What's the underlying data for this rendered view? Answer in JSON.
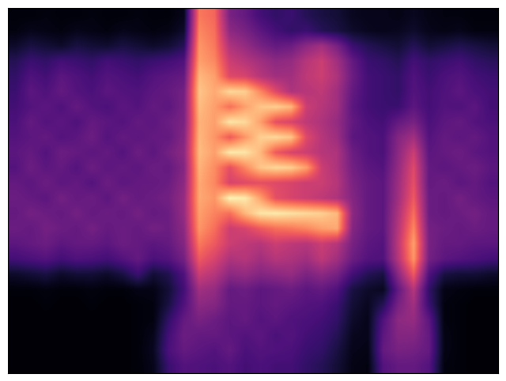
{
  "chart_data": {
    "type": "heatmap",
    "color": "magma",
    "tick_labels": false,
    "value_range": [
      0,
      1
    ],
    "cells": [
      [
        0.02,
        0.02,
        0.03,
        0.02,
        0.02,
        0.03,
        0.02,
        0.02,
        0.03,
        0.02,
        0.02,
        0.05,
        0.72,
        0.68,
        0.35,
        0.3,
        0.22,
        0.18,
        0.2,
        0.15,
        0.12,
        0.1,
        0.06,
        0.05,
        0.05,
        0.04,
        0.06,
        0.04,
        0.03,
        0.03,
        0.02,
        0.02
      ],
      [
        0.03,
        0.05,
        0.04,
        0.03,
        0.05,
        0.04,
        0.03,
        0.05,
        0.04,
        0.03,
        0.04,
        0.08,
        0.75,
        0.7,
        0.4,
        0.35,
        0.28,
        0.22,
        0.18,
        0.2,
        0.15,
        0.12,
        0.08,
        0.06,
        0.05,
        0.06,
        0.08,
        0.05,
        0.04,
        0.05,
        0.03,
        0.03
      ],
      [
        0.08,
        0.12,
        0.1,
        0.08,
        0.12,
        0.1,
        0.09,
        0.12,
        0.1,
        0.08,
        0.1,
        0.15,
        0.78,
        0.72,
        0.48,
        0.42,
        0.35,
        0.3,
        0.32,
        0.4,
        0.45,
        0.35,
        0.2,
        0.15,
        0.12,
        0.1,
        0.15,
        0.1,
        0.12,
        0.14,
        0.12,
        0.1
      ],
      [
        0.15,
        0.2,
        0.18,
        0.22,
        0.2,
        0.18,
        0.22,
        0.2,
        0.18,
        0.2,
        0.22,
        0.25,
        0.8,
        0.75,
        0.55,
        0.5,
        0.45,
        0.4,
        0.42,
        0.5,
        0.55,
        0.45,
        0.3,
        0.2,
        0.18,
        0.15,
        0.22,
        0.18,
        0.2,
        0.22,
        0.18,
        0.16
      ],
      [
        0.18,
        0.25,
        0.22,
        0.28,
        0.25,
        0.22,
        0.26,
        0.24,
        0.22,
        0.26,
        0.28,
        0.3,
        0.85,
        0.8,
        0.6,
        0.58,
        0.5,
        0.45,
        0.45,
        0.52,
        0.55,
        0.48,
        0.32,
        0.22,
        0.2,
        0.18,
        0.25,
        0.2,
        0.24,
        0.26,
        0.22,
        0.2
      ],
      [
        0.2,
        0.28,
        0.25,
        0.3,
        0.26,
        0.24,
        0.28,
        0.26,
        0.25,
        0.28,
        0.3,
        0.34,
        0.88,
        0.82,
        0.92,
        0.9,
        0.75,
        0.6,
        0.48,
        0.5,
        0.52,
        0.45,
        0.3,
        0.22,
        0.2,
        0.18,
        0.26,
        0.22,
        0.25,
        0.28,
        0.24,
        0.22
      ],
      [
        0.22,
        0.26,
        0.28,
        0.25,
        0.3,
        0.26,
        0.24,
        0.28,
        0.26,
        0.3,
        0.28,
        0.35,
        0.86,
        0.8,
        0.7,
        0.8,
        0.88,
        0.9,
        0.85,
        0.55,
        0.5,
        0.45,
        0.28,
        0.22,
        0.2,
        0.2,
        0.28,
        0.22,
        0.26,
        0.25,
        0.28,
        0.22
      ],
      [
        0.24,
        0.3,
        0.26,
        0.28,
        0.25,
        0.3,
        0.28,
        0.26,
        0.3,
        0.28,
        0.32,
        0.36,
        0.84,
        0.8,
        0.95,
        0.92,
        0.8,
        0.62,
        0.58,
        0.52,
        0.48,
        0.42,
        0.3,
        0.24,
        0.22,
        0.3,
        0.35,
        0.24,
        0.28,
        0.3,
        0.26,
        0.24
      ],
      [
        0.26,
        0.28,
        0.3,
        0.26,
        0.28,
        0.32,
        0.26,
        0.3,
        0.28,
        0.3,
        0.3,
        0.38,
        0.85,
        0.78,
        0.65,
        0.78,
        0.9,
        0.92,
        0.88,
        0.6,
        0.5,
        0.44,
        0.28,
        0.26,
        0.24,
        0.38,
        0.45,
        0.26,
        0.3,
        0.28,
        0.3,
        0.26
      ],
      [
        0.28,
        0.3,
        0.26,
        0.32,
        0.3,
        0.28,
        0.3,
        0.26,
        0.32,
        0.28,
        0.34,
        0.4,
        0.86,
        0.8,
        0.96,
        0.95,
        0.85,
        0.65,
        0.58,
        0.55,
        0.5,
        0.48,
        0.32,
        0.26,
        0.24,
        0.4,
        0.55,
        0.28,
        0.3,
        0.32,
        0.28,
        0.26
      ],
      [
        0.26,
        0.32,
        0.28,
        0.3,
        0.26,
        0.32,
        0.28,
        0.3,
        0.28,
        0.32,
        0.3,
        0.38,
        0.84,
        0.76,
        0.62,
        0.75,
        0.88,
        0.92,
        0.9,
        0.8,
        0.55,
        0.48,
        0.34,
        0.28,
        0.26,
        0.42,
        0.6,
        0.3,
        0.28,
        0.3,
        0.32,
        0.28
      ],
      [
        0.3,
        0.28,
        0.32,
        0.28,
        0.3,
        0.26,
        0.32,
        0.28,
        0.3,
        0.3,
        0.32,
        0.4,
        0.82,
        0.75,
        0.58,
        0.6,
        0.62,
        0.6,
        0.58,
        0.55,
        0.55,
        0.5,
        0.36,
        0.3,
        0.28,
        0.44,
        0.62,
        0.3,
        0.32,
        0.28,
        0.3,
        0.26
      ],
      [
        0.32,
        0.3,
        0.28,
        0.34,
        0.3,
        0.32,
        0.28,
        0.34,
        0.3,
        0.32,
        0.34,
        0.42,
        0.82,
        0.78,
        0.98,
        0.96,
        0.8,
        0.62,
        0.58,
        0.55,
        0.52,
        0.48,
        0.38,
        0.3,
        0.28,
        0.45,
        0.65,
        0.32,
        0.3,
        0.34,
        0.3,
        0.28
      ],
      [
        0.3,
        0.34,
        0.32,
        0.3,
        0.34,
        0.3,
        0.32,
        0.3,
        0.34,
        0.3,
        0.32,
        0.42,
        0.8,
        0.74,
        0.7,
        0.85,
        0.95,
        0.96,
        0.94,
        0.92,
        0.9,
        0.85,
        0.4,
        0.3,
        0.28,
        0.48,
        0.7,
        0.32,
        0.3,
        0.32,
        0.34,
        0.3
      ],
      [
        0.32,
        0.3,
        0.34,
        0.32,
        0.3,
        0.34,
        0.3,
        0.32,
        0.3,
        0.34,
        0.32,
        0.4,
        0.78,
        0.7,
        0.55,
        0.58,
        0.65,
        0.7,
        0.72,
        0.75,
        0.8,
        0.82,
        0.38,
        0.3,
        0.28,
        0.5,
        0.75,
        0.34,
        0.32,
        0.3,
        0.32,
        0.3
      ],
      [
        0.28,
        0.3,
        0.32,
        0.28,
        0.3,
        0.3,
        0.28,
        0.32,
        0.3,
        0.28,
        0.3,
        0.38,
        0.72,
        0.65,
        0.55,
        0.52,
        0.5,
        0.55,
        0.52,
        0.5,
        0.55,
        0.5,
        0.35,
        0.28,
        0.26,
        0.52,
        0.8,
        0.35,
        0.3,
        0.3,
        0.28,
        0.28
      ],
      [
        0.22,
        0.24,
        0.26,
        0.22,
        0.25,
        0.24,
        0.22,
        0.26,
        0.3,
        0.24,
        0.26,
        0.34,
        0.65,
        0.58,
        0.48,
        0.5,
        0.45,
        0.5,
        0.48,
        0.45,
        0.52,
        0.45,
        0.32,
        0.26,
        0.25,
        0.5,
        0.78,
        0.34,
        0.28,
        0.26,
        0.24,
        0.22
      ],
      [
        0.08,
        0.1,
        0.12,
        0.08,
        0.1,
        0.1,
        0.08,
        0.12,
        0.2,
        0.1,
        0.14,
        0.25,
        0.55,
        0.5,
        0.4,
        0.42,
        0.38,
        0.4,
        0.42,
        0.36,
        0.4,
        0.35,
        0.22,
        0.15,
        0.12,
        0.4,
        0.65,
        0.25,
        0.12,
        0.1,
        0.1,
        0.08
      ],
      [
        0.02,
        0.02,
        0.03,
        0.02,
        0.02,
        0.03,
        0.02,
        0.02,
        0.04,
        0.04,
        0.1,
        0.22,
        0.45,
        0.42,
        0.3,
        0.32,
        0.28,
        0.3,
        0.32,
        0.28,
        0.3,
        0.25,
        0.12,
        0.08,
        0.06,
        0.3,
        0.5,
        0.18,
        0.04,
        0.03,
        0.02,
        0.02
      ],
      [
        0.01,
        0.01,
        0.02,
        0.01,
        0.01,
        0.02,
        0.01,
        0.01,
        0.02,
        0.03,
        0.12,
        0.25,
        0.4,
        0.38,
        0.3,
        0.3,
        0.28,
        0.3,
        0.28,
        0.26,
        0.25,
        0.2,
        0.1,
        0.06,
        0.15,
        0.35,
        0.45,
        0.2,
        0.03,
        0.02,
        0.01,
        0.01
      ],
      [
        0.01,
        0.01,
        0.01,
        0.01,
        0.01,
        0.01,
        0.01,
        0.01,
        0.02,
        0.03,
        0.18,
        0.3,
        0.35,
        0.32,
        0.28,
        0.3,
        0.26,
        0.28,
        0.25,
        0.24,
        0.22,
        0.18,
        0.08,
        0.05,
        0.25,
        0.4,
        0.42,
        0.28,
        0.03,
        0.02,
        0.01,
        0.01
      ],
      [
        0.01,
        0.01,
        0.01,
        0.01,
        0.01,
        0.01,
        0.01,
        0.01,
        0.02,
        0.05,
        0.22,
        0.32,
        0.3,
        0.3,
        0.28,
        0.26,
        0.28,
        0.24,
        0.26,
        0.22,
        0.2,
        0.15,
        0.06,
        0.05,
        0.28,
        0.38,
        0.38,
        0.3,
        0.04,
        0.02,
        0.01,
        0.01
      ],
      [
        0.01,
        0.01,
        0.01,
        0.01,
        0.01,
        0.01,
        0.01,
        0.01,
        0.02,
        0.06,
        0.24,
        0.3,
        0.28,
        0.26,
        0.3,
        0.24,
        0.26,
        0.25,
        0.24,
        0.2,
        0.18,
        0.12,
        0.05,
        0.04,
        0.3,
        0.35,
        0.34,
        0.3,
        0.04,
        0.02,
        0.01,
        0.01
      ],
      [
        0.01,
        0.01,
        0.01,
        0.01,
        0.01,
        0.01,
        0.01,
        0.01,
        0.02,
        0.05,
        0.2,
        0.26,
        0.25,
        0.24,
        0.26,
        0.22,
        0.24,
        0.22,
        0.22,
        0.18,
        0.15,
        0.1,
        0.04,
        0.03,
        0.26,
        0.3,
        0.3,
        0.26,
        0.03,
        0.02,
        0.01,
        0.01
      ]
    ]
  }
}
